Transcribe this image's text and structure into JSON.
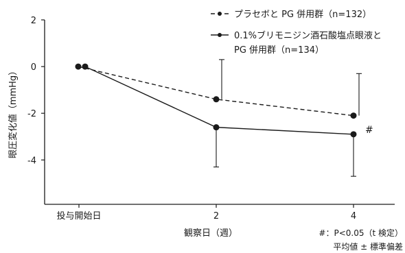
{
  "chart_data": {
    "type": "line",
    "title": "",
    "ylabel": "眼圧変化値（mmHg）",
    "xlabel": "観察日（週）",
    "ylim": [
      -5.9,
      2
    ],
    "yticks": [
      2,
      0,
      -2,
      -4
    ],
    "yticklabels": [
      "2",
      "0",
      "-2",
      "-4"
    ],
    "xticks": [
      0,
      2,
      4
    ],
    "xticklabels": [
      "投与開始日",
      "2",
      "4"
    ],
    "grid": false,
    "legend_placement": "top-right",
    "series": [
      {
        "name": "プラセボと PG 併用群（n=132）",
        "legend_lines": [
          "プラセボと PG 併用群（n=132）"
        ],
        "line_style": "dashed",
        "color": "#1a1a1a",
        "x": [
          0,
          2,
          4
        ],
        "y": [
          0,
          -1.4,
          -2.1
        ],
        "error_upper": [
          null,
          1.7,
          1.8
        ],
        "error_lower": [
          null,
          null,
          null
        ]
      },
      {
        "name": "0.1%ブリモニジン酒石酸塩点眼液と PG 併用群（n=134）",
        "legend_lines": [
          "0.1%ブリモニジン酒石酸塩点眼液と",
          "PG 併用群（n=134）"
        ],
        "line_style": "solid",
        "color": "#1a1a1a",
        "x": [
          0,
          2,
          4
        ],
        "y": [
          0,
          -2.6,
          -2.9
        ],
        "error_upper": [
          null,
          null,
          null
        ],
        "error_lower": [
          null,
          1.7,
          1.8
        ]
      }
    ],
    "annotations": [
      {
        "text": "#",
        "series": 1,
        "index": 2
      }
    ],
    "notes": [
      "#：P<0.05（t 検定）",
      "平均値 ± 標準偏差"
    ]
  }
}
